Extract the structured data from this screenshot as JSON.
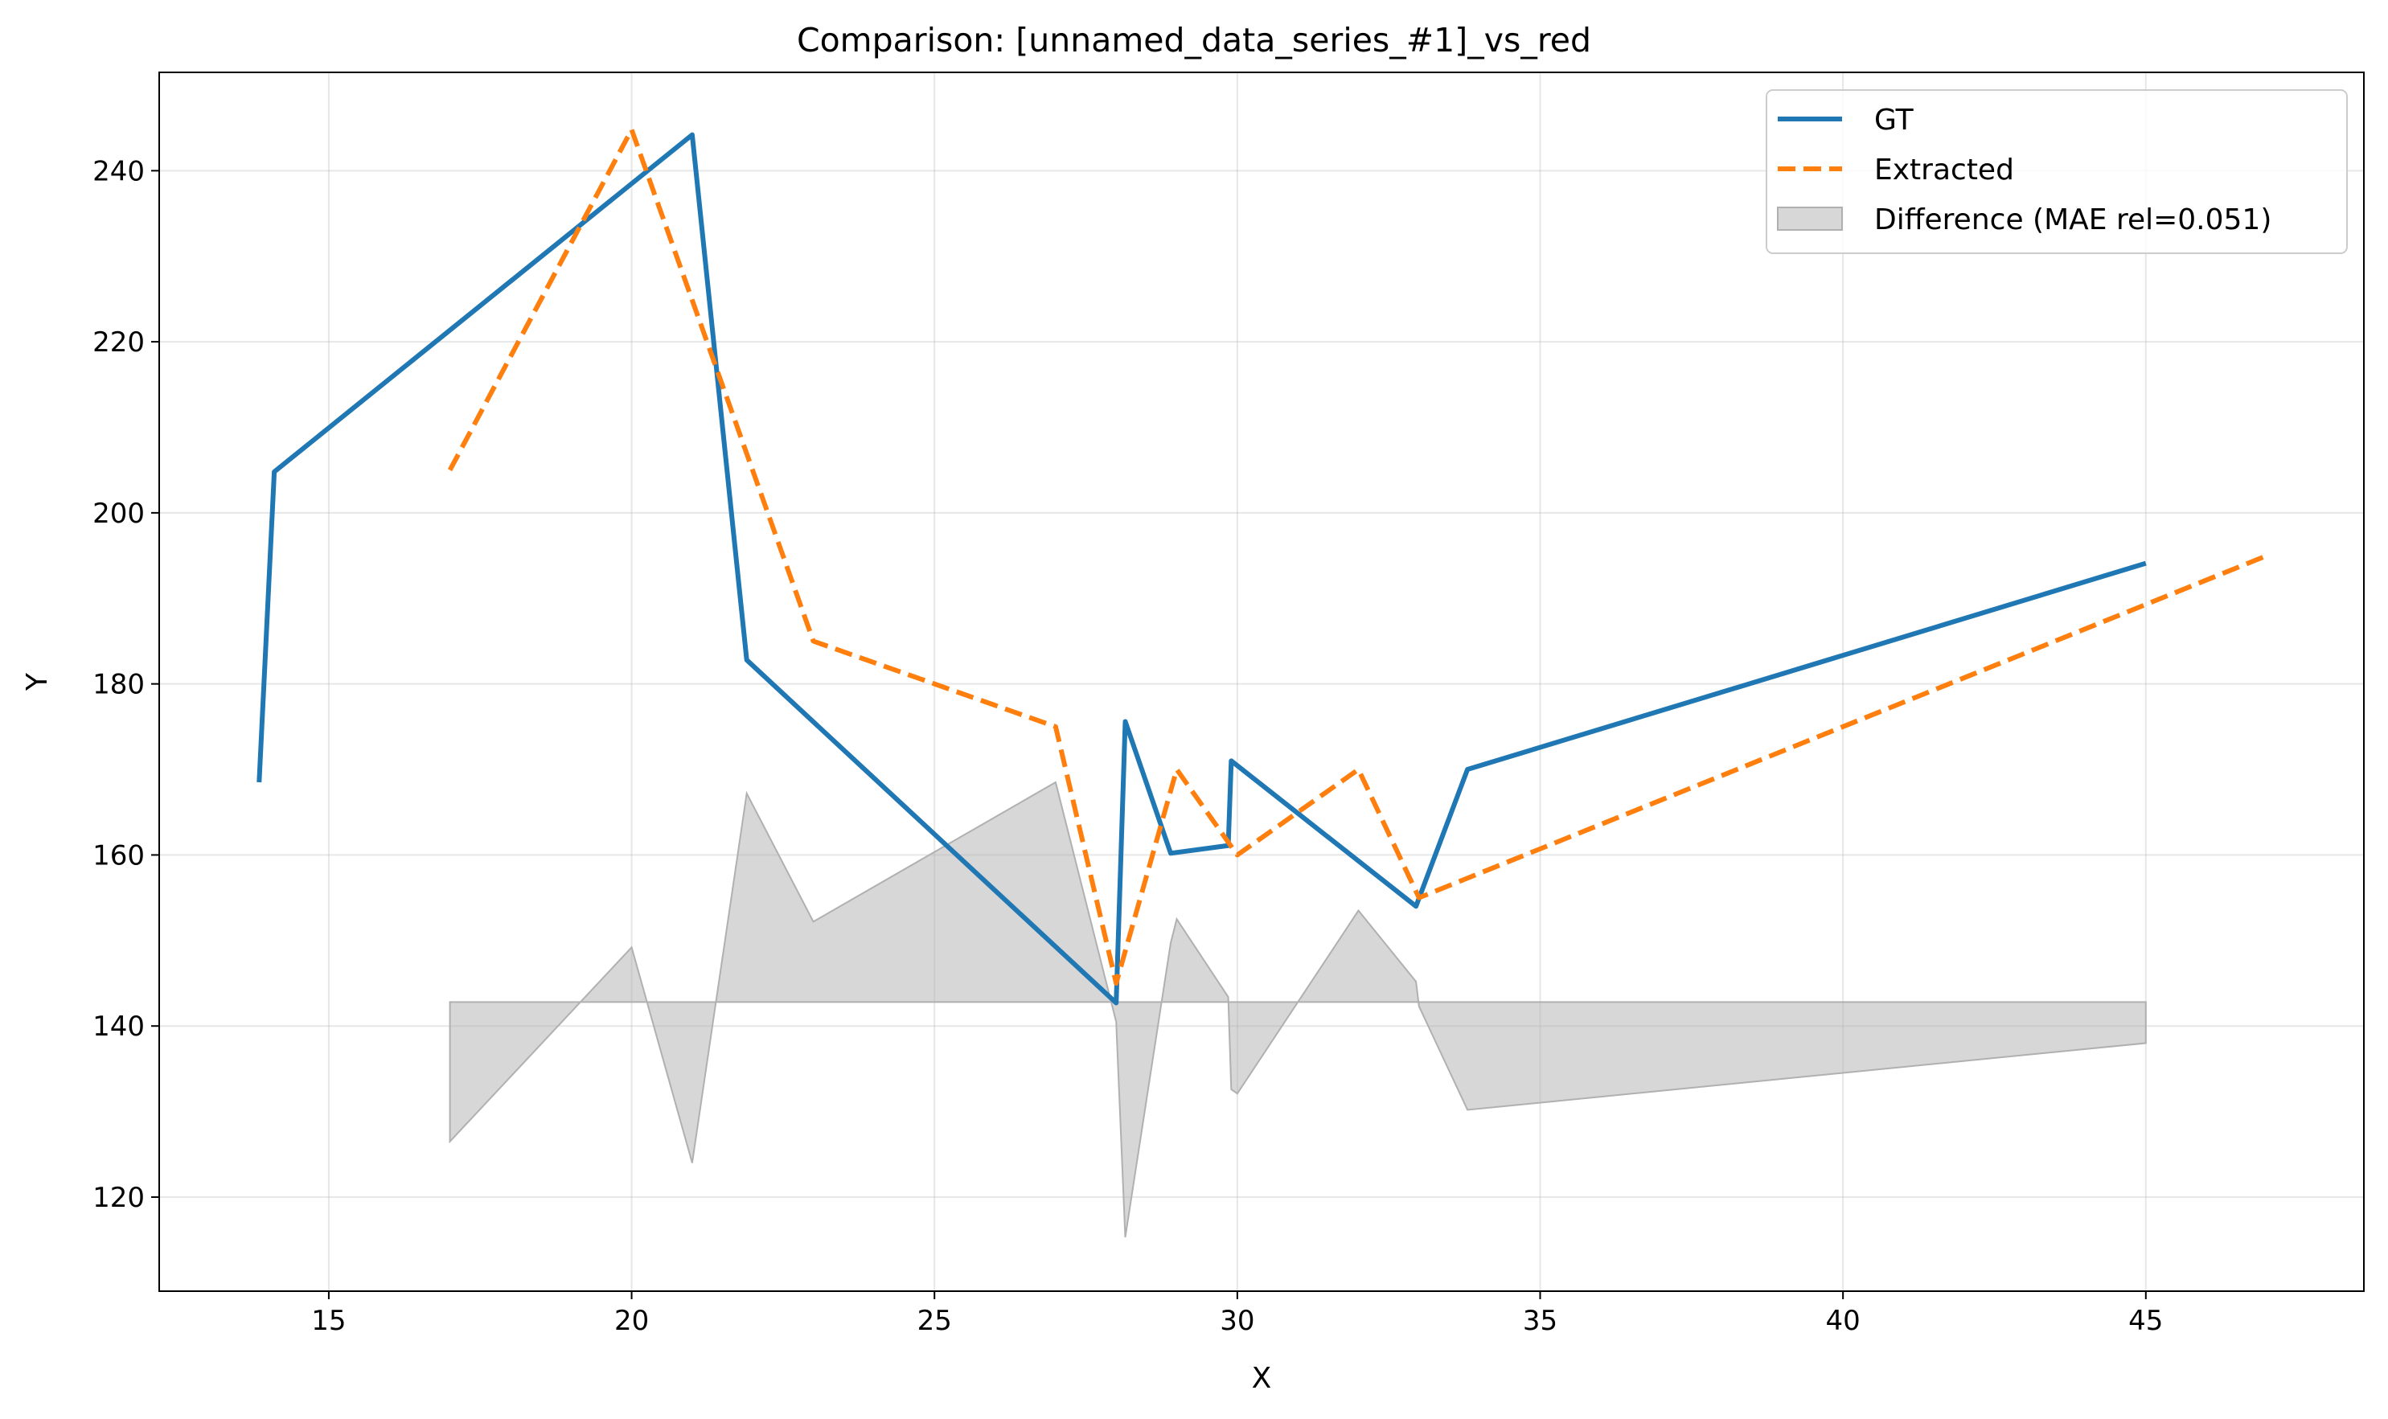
{
  "chart_data": {
    "type": "line",
    "title": "Comparison: [unnamed_data_series_#1]_vs_red",
    "xlabel": "X",
    "ylabel": "Y",
    "xlim": [
      12.2,
      48.6
    ],
    "ylim": [
      109,
      251.5
    ],
    "xticks": [
      15,
      20,
      25,
      30,
      35,
      40,
      45
    ],
    "yticks": [
      120,
      140,
      160,
      180,
      200,
      220,
      240
    ],
    "grid": true,
    "legend_position": "top-right",
    "series": [
      {
        "name": "GT",
        "color": "#1f77b4",
        "style": "solid",
        "x": [
          13.85,
          14.1,
          21.0,
          21.9,
          28.0,
          28.15,
          28.9,
          29.85,
          29.9,
          32.95,
          33.8,
          45.0
        ],
        "y": [
          168.5,
          204.8,
          244.2,
          182.8,
          142.7,
          175.6,
          160.2,
          161.1,
          171.0,
          154.0,
          170.0,
          194.1
        ]
      },
      {
        "name": "Extracted",
        "color": "#ff7f0e",
        "style": "dashed",
        "x": [
          17.0,
          20.0,
          23.0,
          27.0,
          28.0,
          29.0,
          30.0,
          32.0,
          33.0,
          47.0
        ],
        "y": [
          205.0,
          244.8,
          185.0,
          175.0,
          145.0,
          170.0,
          160.0,
          170.0,
          155.0,
          195.0
        ]
      },
      {
        "name": "Difference (MAE rel=0.051)",
        "color": "#b0b0b0",
        "style": "fill",
        "baseline": 142.8,
        "x": [
          17.0,
          20.0,
          21.0,
          21.9,
          23.0,
          27.0,
          28.0,
          28.15,
          28.9,
          29.0,
          29.85,
          29.9,
          30.0,
          32.0,
          32.95,
          33.0,
          33.8,
          45.0
        ],
        "y": [
          126.5,
          149.2,
          124.0,
          167.2,
          152.2,
          168.5,
          140.5,
          115.3,
          149.7,
          152.5,
          143.4,
          132.6,
          132.1,
          153.5,
          145.2,
          142.3,
          130.2,
          138.0
        ]
      }
    ]
  }
}
